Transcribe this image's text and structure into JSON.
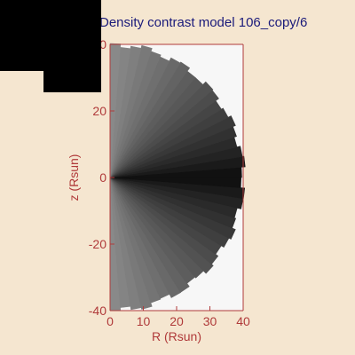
{
  "chart_data": {
    "type": "heatmap",
    "title": "Density contrast model 106_copy/6",
    "xlabel": "R (Rsun)",
    "ylabel": "z (Rsun)",
    "xlim": [
      0,
      40
    ],
    "ylim": [
      -40,
      40
    ],
    "xticks": [
      0,
      10,
      20,
      30,
      40
    ],
    "yticks": [
      -40,
      -20,
      0,
      20,
      40
    ],
    "domain_radius_rsun": 40,
    "grid": false,
    "colormap": "grayscale",
    "description_values": {
      "equator_intensity": "dark",
      "pole_intensity": "light"
    }
  },
  "colors": {
    "background": "#f5e6d0",
    "plot_background": "#f7f7f7",
    "axis": "#b03a3a",
    "title": "#1a1a7a",
    "overlay": "#000000"
  }
}
